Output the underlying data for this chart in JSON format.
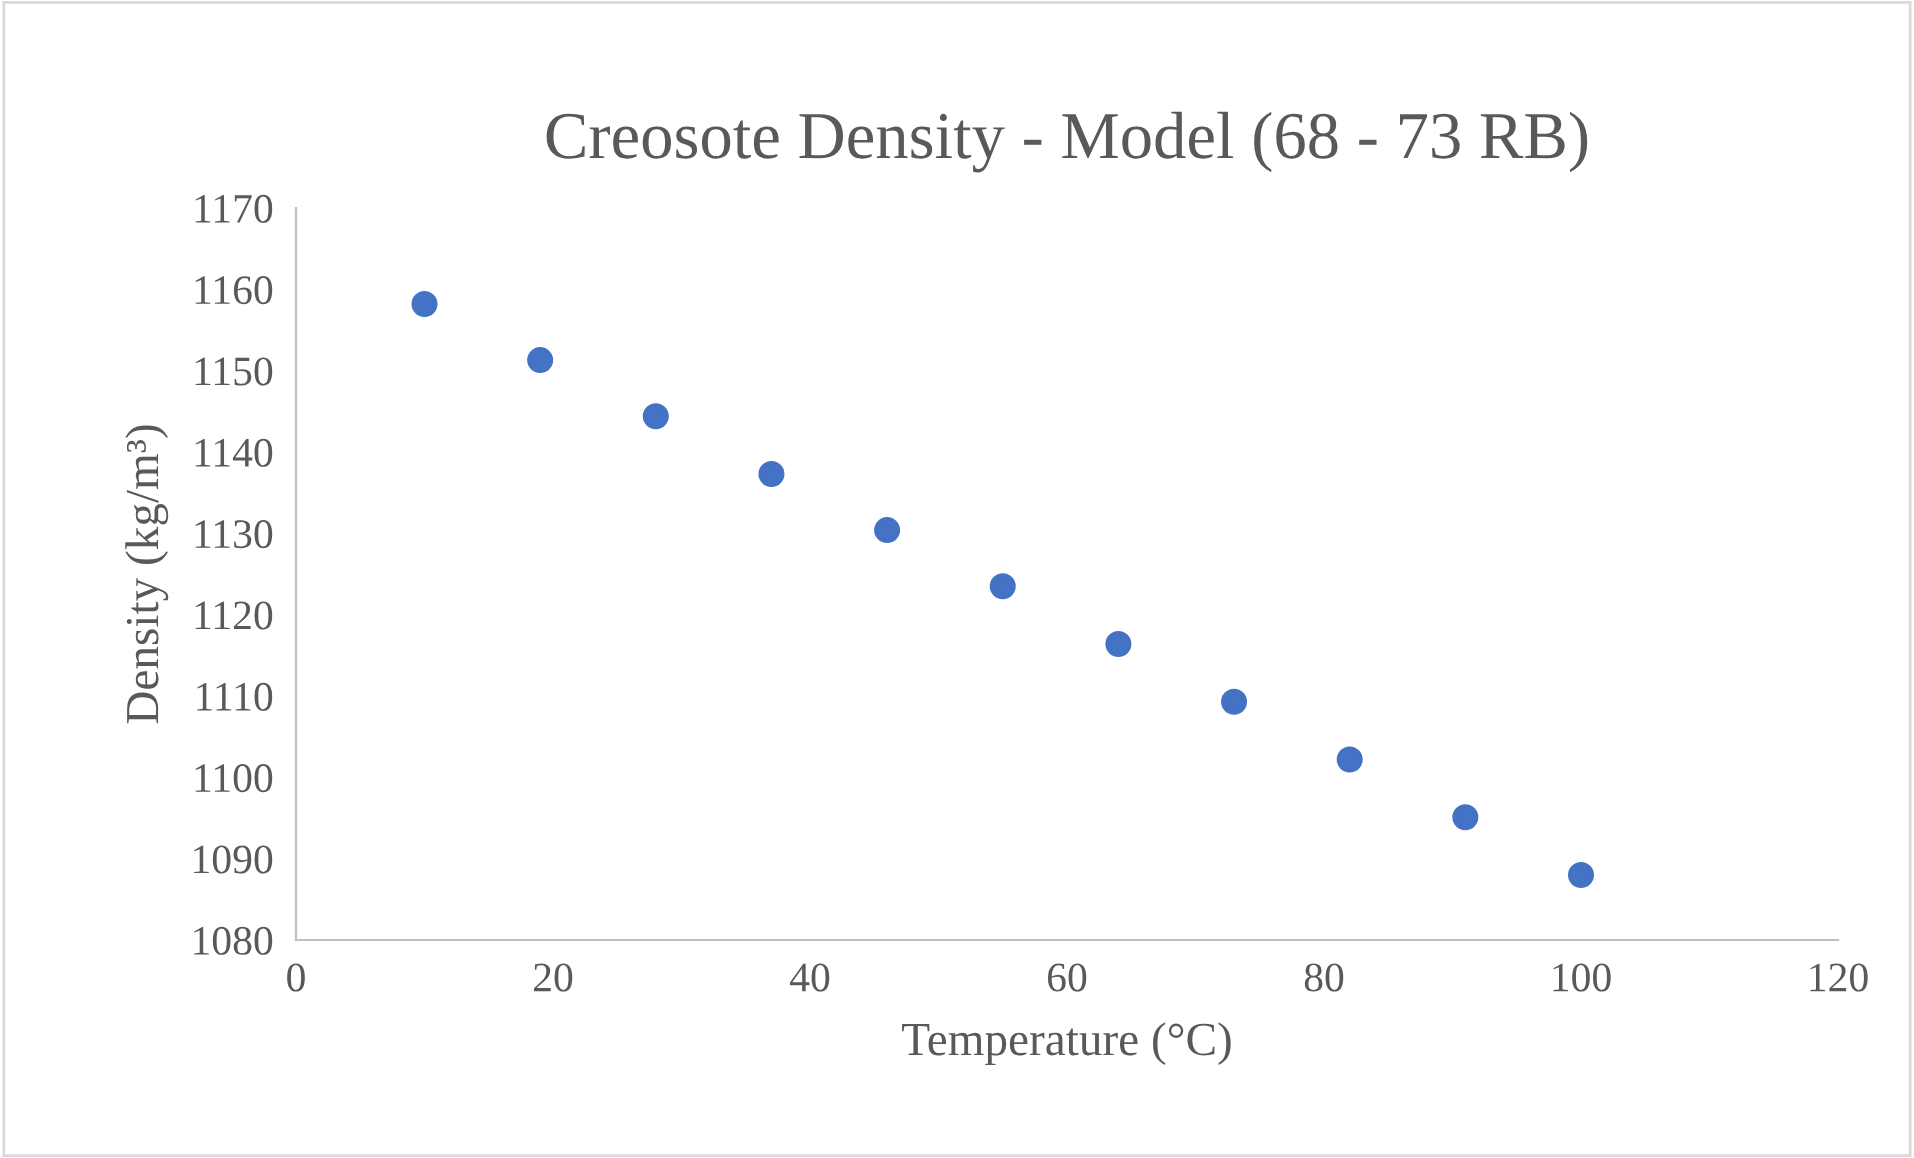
{
  "chart_data": {
    "type": "scatter",
    "title": "Creosote Density - Model (68 - 73 RB)",
    "xlabel": "Temperature (°C)",
    "ylabel": "Density (kg/m³)",
    "x": [
      10,
      19,
      28,
      37,
      46,
      55,
      64,
      73,
      82,
      91,
      100
    ],
    "series": [
      {
        "color": "#4472c4",
        "values": [
          1158.2,
          1151.3,
          1144.4,
          1137.3,
          1130.4,
          1123.5,
          1116.4,
          1109.3,
          1102.2,
          1095.1,
          1088.0
        ]
      }
    ],
    "xlim": [
      0,
      120
    ],
    "xticks": [
      0,
      20,
      40,
      60,
      80,
      100,
      120
    ],
    "ylim": [
      1080,
      1170
    ],
    "yticks": [
      1080,
      1090,
      1100,
      1110,
      1120,
      1130,
      1140,
      1150,
      1160,
      1170
    ],
    "grid": false,
    "legend": false,
    "marker": "circle"
  }
}
